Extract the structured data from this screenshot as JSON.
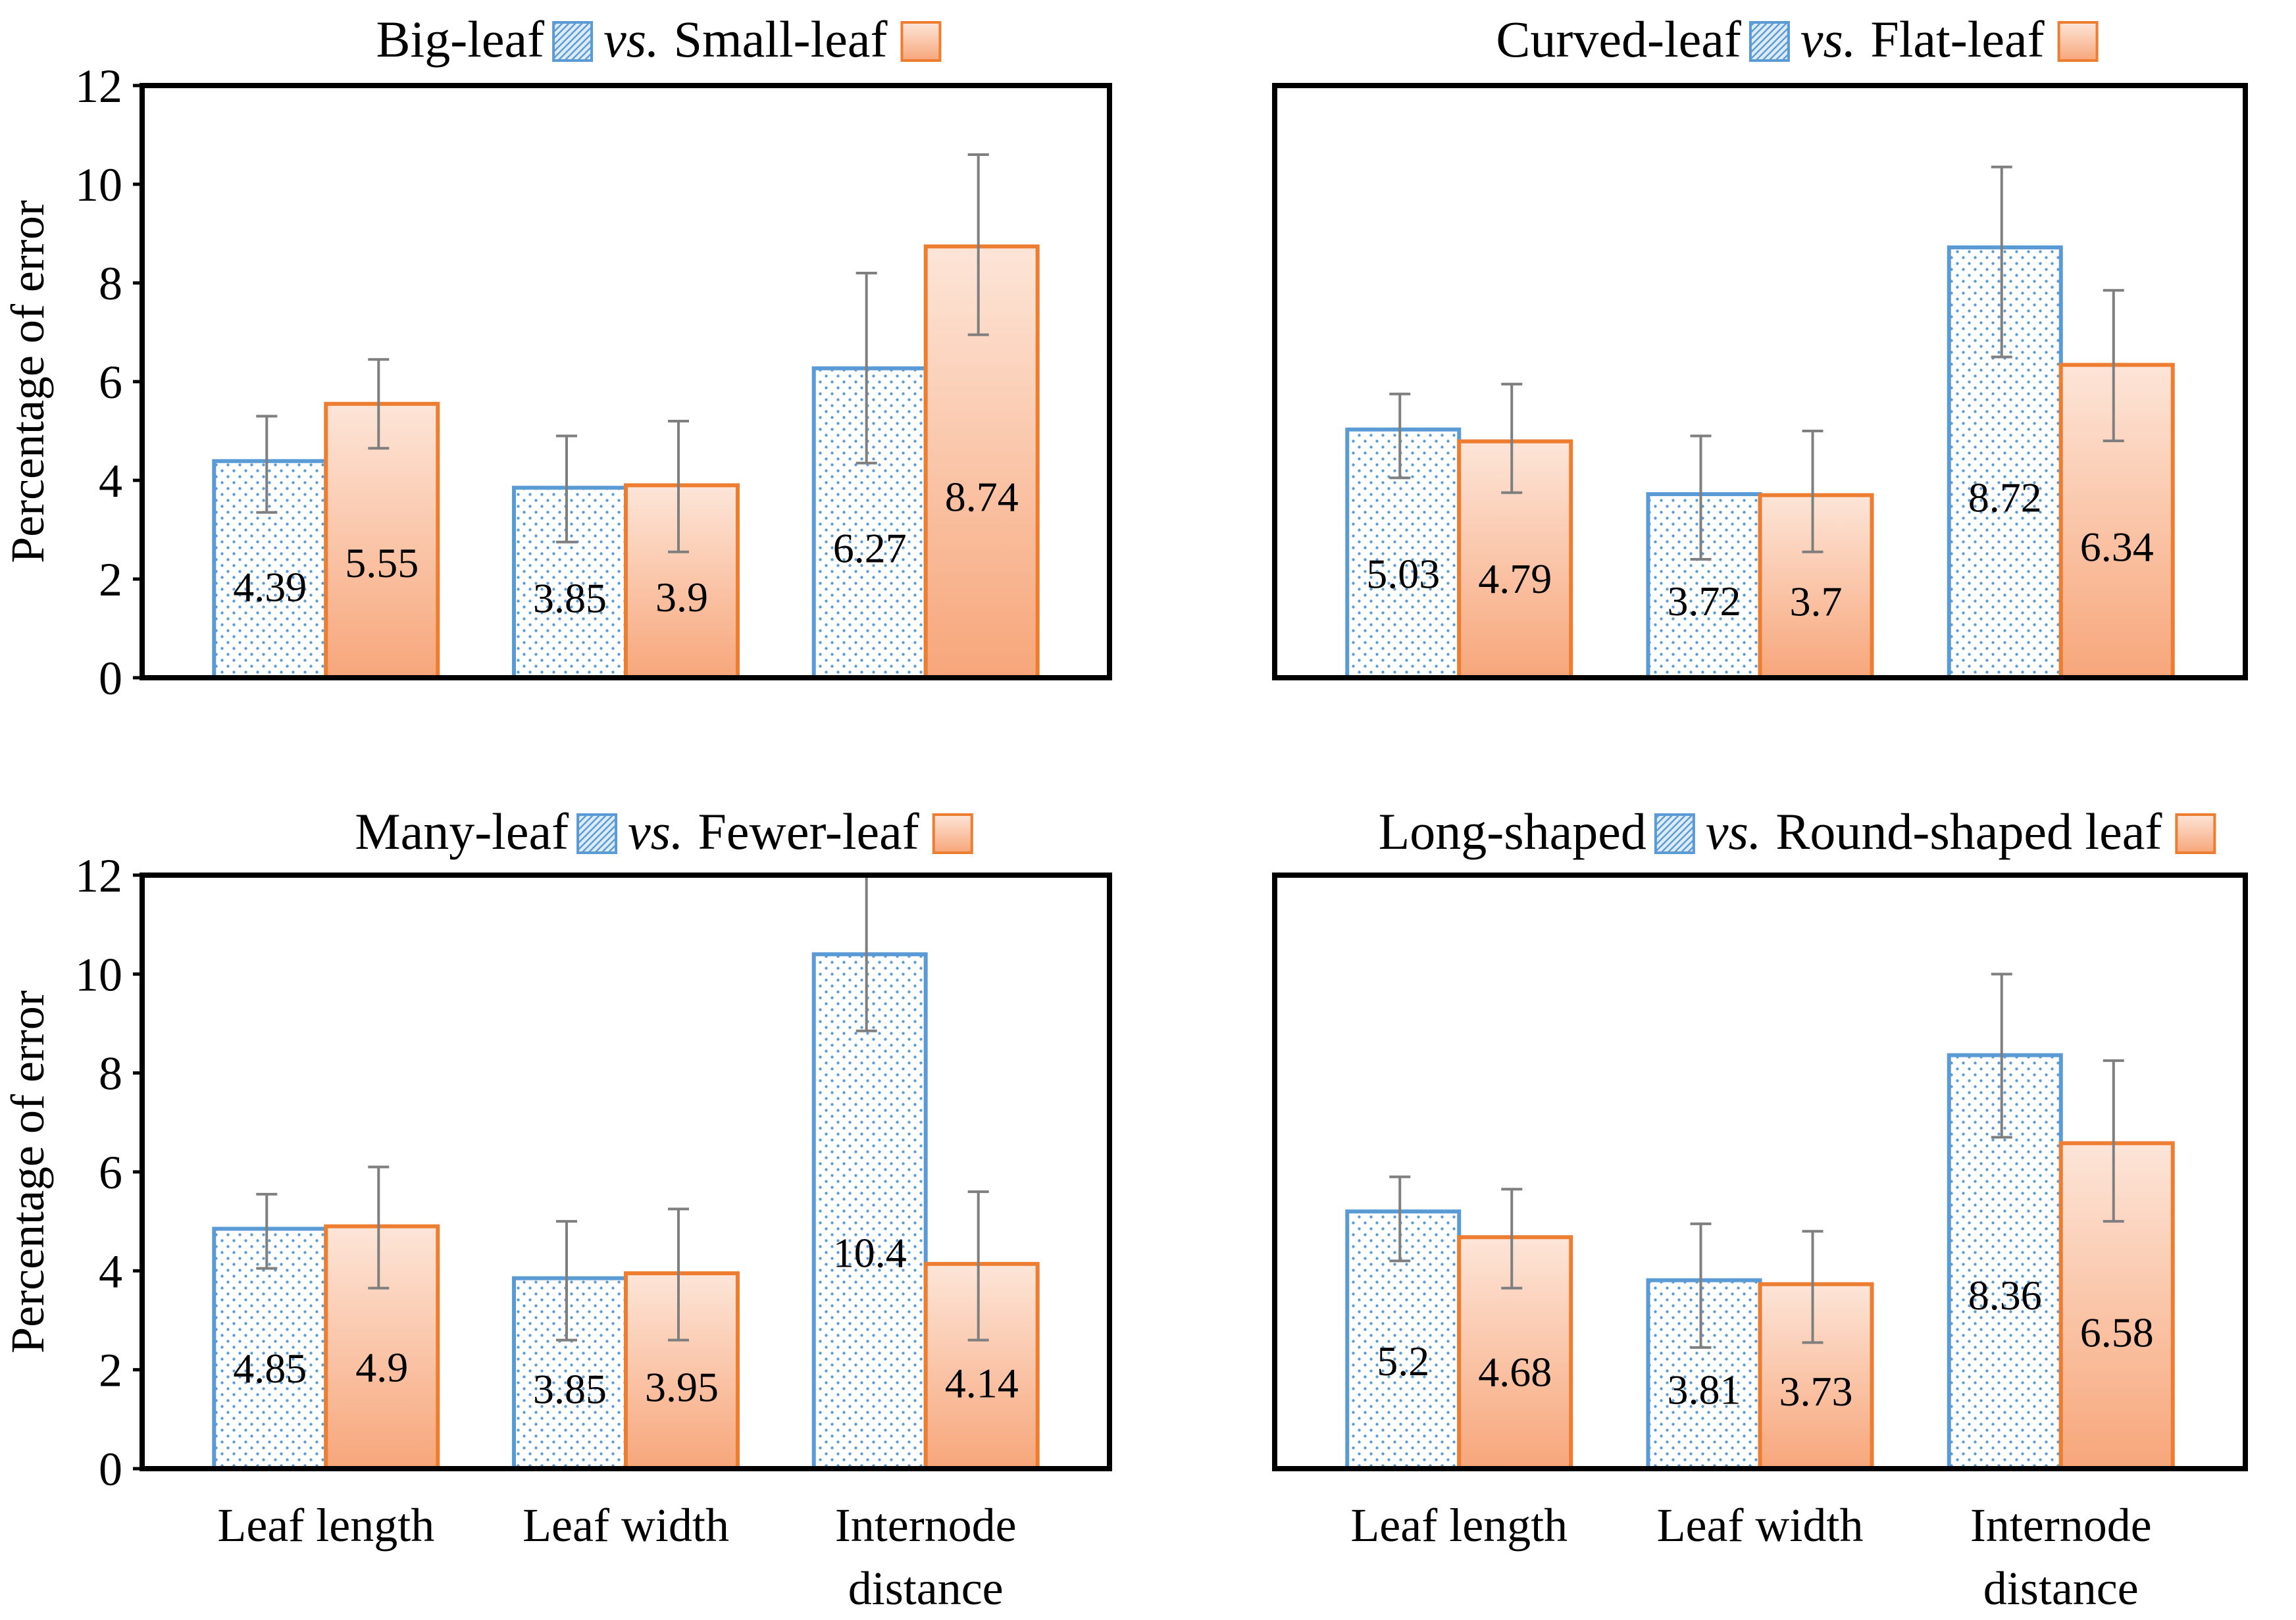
{
  "colors": {
    "series_a_outline": "#5B9BD5",
    "series_a_dots": "#5B9BD5",
    "series_b_outline": "#ED7D31",
    "series_b_fill_top": "#FDE3D6",
    "series_b_fill_bottom": "#F7A77B",
    "error_bar": "#7F7F7F",
    "frame": "#000000"
  },
  "ylabel": "Percentage of error",
  "vs_text": "vs.",
  "y_ticks": [
    "0",
    "2",
    "4",
    "6",
    "8",
    "10",
    "12"
  ],
  "categories": [
    "Leaf length",
    "Leaf width",
    "Internode distance"
  ],
  "chart_data": [
    {
      "type": "bar",
      "title": {
        "a": "Big-leaf",
        "b": "Small-leaf"
      },
      "categories": [
        "Leaf length",
        "Leaf width",
        "Internode distance"
      ],
      "ylim": [
        0,
        12
      ],
      "grid": false,
      "series": [
        {
          "name": "Big-leaf",
          "values": [
            4.39,
            3.85,
            6.27
          ],
          "err_low": [
            3.35,
            2.75,
            4.35
          ],
          "err_high": [
            5.3,
            4.9,
            8.2
          ]
        },
        {
          "name": "Small-leaf",
          "values": [
            5.55,
            3.9,
            8.74
          ],
          "err_low": [
            4.65,
            2.55,
            6.95
          ],
          "err_high": [
            6.45,
            5.2,
            10.6
          ]
        }
      ]
    },
    {
      "type": "bar",
      "title": {
        "a": "Curved-leaf",
        "b": "Flat-leaf"
      },
      "categories": [
        "Leaf length",
        "Leaf width",
        "Internode distance"
      ],
      "ylim": [
        0,
        12
      ],
      "grid": false,
      "series": [
        {
          "name": "Curved-leaf",
          "values": [
            5.03,
            3.72,
            8.72
          ],
          "err_low": [
            4.05,
            2.4,
            6.5
          ],
          "err_high": [
            5.75,
            4.9,
            10.35
          ]
        },
        {
          "name": "Flat-leaf",
          "values": [
            4.79,
            3.7,
            6.34
          ],
          "err_low": [
            3.75,
            2.55,
            4.8
          ],
          "err_high": [
            5.95,
            5.0,
            7.85
          ]
        }
      ]
    },
    {
      "type": "bar",
      "title": {
        "a": "Many-leaf",
        "b": "Fewer-leaf"
      },
      "categories": [
        "Leaf length",
        "Leaf width",
        "Internode distance"
      ],
      "ylim": [
        0,
        12
      ],
      "grid": false,
      "series": [
        {
          "name": "Many-leaf",
          "values": [
            4.85,
            3.85,
            10.4
          ],
          "err_low": [
            4.05,
            2.6,
            8.85
          ],
          "err_high": [
            5.55,
            5.0,
            12.0
          ]
        },
        {
          "name": "Fewer-leaf",
          "values": [
            4.9,
            3.95,
            4.14
          ],
          "err_low": [
            3.65,
            2.6,
            2.6
          ],
          "err_high": [
            6.1,
            5.25,
            5.6
          ]
        }
      ]
    },
    {
      "type": "bar",
      "title": {
        "a": "Long-shaped",
        "b": "Round-shaped leaf"
      },
      "categories": [
        "Leaf length",
        "Leaf width",
        "Internode distance"
      ],
      "ylim": [
        0,
        12
      ],
      "grid": false,
      "series": [
        {
          "name": "Long-shaped",
          "values": [
            5.2,
            3.81,
            8.36
          ],
          "err_low": [
            4.2,
            2.45,
            6.7
          ],
          "err_high": [
            5.9,
            4.95,
            10.0
          ]
        },
        {
          "name": "Round-shaped leaf",
          "values": [
            4.68,
            3.73,
            6.58
          ],
          "err_low": [
            3.65,
            2.55,
            5.0
          ],
          "err_high": [
            5.65,
            4.8,
            8.25
          ]
        }
      ]
    }
  ]
}
